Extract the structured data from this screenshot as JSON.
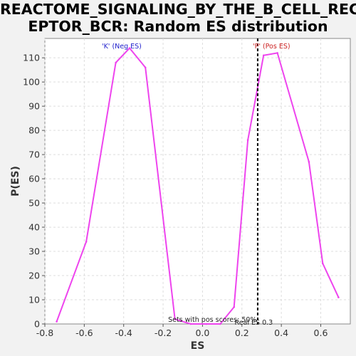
{
  "title_line1": "REACTOME_SIGNALING_BY_THE_B_CELL_REC",
  "title_line2": "EPTOR_BCR: Random ES distribution",
  "chart_data": {
    "type": "line",
    "title": "REACTOME_SIGNALING_BY_THE_B_CELL_RECEPTOR_BCR: Random ES distribution",
    "xlabel": "ES",
    "ylabel": "P(ES)",
    "xlim": [
      -0.8,
      0.75
    ],
    "ylim": [
      0,
      118
    ],
    "x_ticks": [
      -0.8,
      -0.6,
      -0.4,
      -0.2,
      0.0,
      0.2,
      0.4,
      0.6
    ],
    "x_tick_labels": [
      "-0.8",
      "-0.6",
      "-0.4",
      "-0.2",
      "0.0",
      "0.2",
      "0.4",
      "0.6"
    ],
    "y_ticks": [
      0,
      10,
      20,
      30,
      40,
      50,
      60,
      70,
      80,
      90,
      100,
      110
    ],
    "y_tick_labels": [
      "0",
      "10",
      "20",
      "30",
      "40",
      "50",
      "60",
      "70",
      "80",
      "90",
      "100",
      "110"
    ],
    "grid": true,
    "line_color": "#ee44ee",
    "series": [
      {
        "x": [
          -0.74,
          -0.59,
          -0.44,
          -0.37,
          -0.29,
          -0.14,
          -0.06,
          0.02,
          0.09,
          0.16,
          0.23,
          0.31,
          0.38,
          0.54,
          0.61,
          0.69
        ],
        "y": [
          1,
          34,
          108,
          114,
          106,
          2,
          0,
          0,
          0,
          7,
          76,
          111,
          112,
          67,
          25,
          11
        ]
      }
    ],
    "real_es": 0.28,
    "annotations": {
      "neg_label": "'K' (Neg ES)",
      "pos_label": "'P' (Pos ES)",
      "real_es_label": "Real ES 0.3",
      "pos_scores_label": "Sets with pos scores: 50%"
    },
    "colors": {
      "neg": "#2222cc",
      "pos": "#cc2222",
      "line": "#ee44ee",
      "marker": "#000000"
    }
  }
}
